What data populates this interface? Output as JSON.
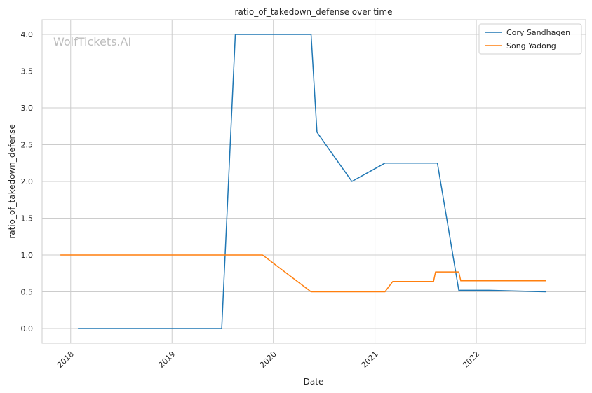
{
  "chart_data": {
    "type": "line",
    "title": "ratio_of_takedown_defense over time",
    "xlabel": "Date",
    "ylabel": "ratio_of_takedown_defense",
    "watermark": "WolfTickets.AI",
    "x_ticks": [
      "2018",
      "2019",
      "2020",
      "2021",
      "2022"
    ],
    "y_ticks": [
      "0.0",
      "0.5",
      "1.0",
      "1.5",
      "2.0",
      "2.5",
      "3.0",
      "3.5",
      "4.0"
    ],
    "xlim": [
      "2017-09-20",
      "2023-01-30"
    ],
    "ylim": [
      -0.2,
      4.2
    ],
    "grid": true,
    "legend_position": "top-right",
    "series": [
      {
        "name": "Cory Sandhagen",
        "color": "#1f77b4",
        "points": [
          [
            "2018-01-27",
            0.0
          ],
          [
            "2019-06-29",
            0.0
          ],
          [
            "2019-08-17",
            4.0
          ],
          [
            "2020-05-16",
            4.0
          ],
          [
            "2020-06-06",
            2.67
          ],
          [
            "2020-10-10",
            2.0
          ],
          [
            "2021-02-06",
            2.25
          ],
          [
            "2021-08-14",
            2.25
          ],
          [
            "2021-10-30",
            0.52
          ],
          [
            "2022-02-15",
            0.52
          ],
          [
            "2022-09-10",
            0.5
          ]
        ]
      },
      {
        "name": "Song Yadong",
        "color": "#ff7f0e",
        "points": [
          [
            "2017-11-25",
            1.0
          ],
          [
            "2019-11-23",
            1.0
          ],
          [
            "2020-05-16",
            0.5
          ],
          [
            "2021-02-06",
            0.5
          ],
          [
            "2021-03-06",
            0.64
          ],
          [
            "2021-07-31",
            0.64
          ],
          [
            "2021-08-07",
            0.77
          ],
          [
            "2021-10-30",
            0.77
          ],
          [
            "2021-11-06",
            0.65
          ],
          [
            "2022-09-10",
            0.65
          ]
        ]
      }
    ]
  }
}
